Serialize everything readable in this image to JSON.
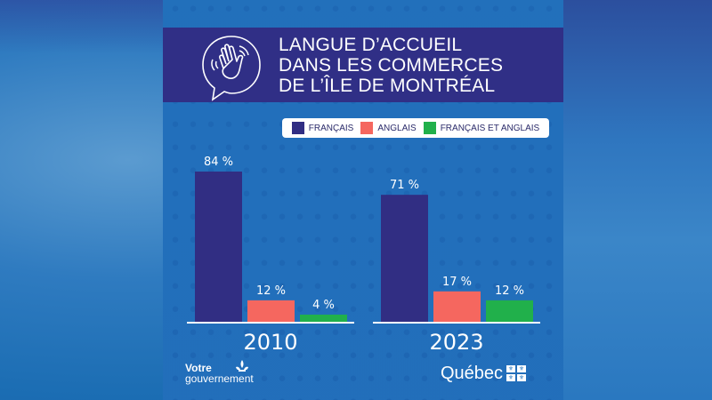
{
  "header": {
    "title_lines": [
      "LANGUE D’ACCUEIL",
      "DANS LES COMMERCES",
      "DE L’ÎLE DE MONTRÉAL"
    ],
    "icon": "waving-hand-speech-bubble-icon"
  },
  "colors": {
    "header_bg": "#302f86",
    "panel_bg": "#2577c2",
    "francais": "#312e83",
    "anglais": "#f5675f",
    "francais_et_anglais": "#21b04b"
  },
  "footer": {
    "left_line1": "Votre",
    "left_line2": "gouvernement",
    "right_label": "Québec",
    "right_icon": "quebec-flag-icon",
    "left_icon": "fleur-de-lys-icon"
  },
  "chart_data": {
    "type": "bar",
    "title": "LANGUE D’ACCUEIL DANS LES COMMERCES DE L’ÎLE DE MONTRÉAL",
    "xlabel": "",
    "ylabel": "",
    "categories": [
      "2010",
      "2023"
    ],
    "series": [
      {
        "name": "FRANÇAIS",
        "color": "#312e83",
        "values": [
          84,
          71
        ],
        "labels": [
          "84 %",
          "71 %"
        ]
      },
      {
        "name": "ANGLAIS",
        "color": "#f5675f",
        "values": [
          12,
          17
        ],
        "labels": [
          "12 %",
          "17 %"
        ]
      },
      {
        "name": "FRANÇAIS ET ANGLAIS",
        "color": "#21b04b",
        "values": [
          4,
          12
        ],
        "labels": [
          "4 %",
          "12 %"
        ]
      }
    ],
    "ylim": [
      0,
      100
    ],
    "grid": false,
    "legend_position": "top-right",
    "unit": "%"
  }
}
